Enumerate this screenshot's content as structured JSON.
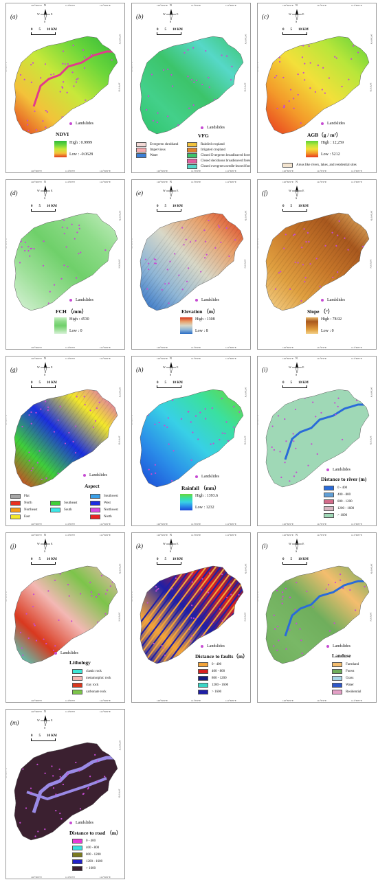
{
  "panels": [
    {
      "label": "(a)",
      "title": "NDVI",
      "high": "High : 0.9999",
      "low": "Low : -0.0628"
    },
    {
      "label": "(b)",
      "title": "VFG",
      "classes": [
        "Evergreen shrubland",
        "Impervious",
        "Water",
        "Rainfed cropland",
        "Irrigated cropland",
        "Closed Evergreen broadleaved forest",
        "Closed deciduous broadleaved forest",
        "Closed evergreen needle-leaved forest"
      ]
    },
    {
      "label": "(c)",
      "title": "AGB（g / m²）",
      "high": "High : 12,259",
      "low": "Low : 5212",
      "note": "Areas like rivers, lakes, and residential sites"
    },
    {
      "label": "(d)",
      "title": "FCH （mm）",
      "high": "High : 4530",
      "low": "Low : 0"
    },
    {
      "label": "(e)",
      "title": "Elevation （m）",
      "high": "High : 1308",
      "low": "Low : 8"
    },
    {
      "label": "(f)",
      "title": "Slope （°）",
      "high": "High : 78.92",
      "low": "Low : 0"
    },
    {
      "label": "(g)",
      "title": "Aspect",
      "classes": [
        "Flat",
        "North",
        "Northeast",
        "East",
        "Southeast",
        "South",
        "Southwest",
        "West",
        "Northwest",
        "North"
      ]
    },
    {
      "label": "(h)",
      "title": "Rainfall （mm）",
      "high": "High : 1393.6",
      "low": "Low : 1232"
    },
    {
      "label": "(i)",
      "title": "Distance to river (m)",
      "classes": [
        "0 - 400",
        "400 - 800",
        "800 - 1200",
        "1200 - 1600",
        "> 1600"
      ]
    },
    {
      "label": "(j)",
      "title": "Lithology",
      "classes": [
        "clastic rock",
        "metamorphic rock",
        "clay rock",
        "carbonate rock"
      ]
    },
    {
      "label": "(k)",
      "title": "Distance to faults（m）",
      "classes": [
        "0 - 400",
        "400 - 800",
        "800 - 1200",
        "1200 - 1600",
        "> 1600"
      ]
    },
    {
      "label": "(l)",
      "title": "Landuse",
      "classes": [
        "Farmland",
        "Forest",
        "Grass",
        "Water",
        "Residential"
      ]
    },
    {
      "label": "(m)",
      "title": "Distance to road （m）",
      "classes": [
        "0 - 400",
        "400 - 800",
        "800 - 1200",
        "1200 - 1600",
        "> 1600"
      ]
    }
  ],
  "common": {
    "landslides": "Landslides",
    "north": "N",
    "west": "W",
    "east": "E",
    "south": "S",
    "scale_0": "0",
    "scale_5": "5",
    "scale_10": "10 KM",
    "lon1": "110°30'0\"E",
    "lon2": "111°0'0\"E",
    "lon3": "111°30'0\"E",
    "lat1": "30°30'0\"N",
    "lat2": "30°0'0\"N"
  },
  "colors": {
    "landslide": "#c64bd3",
    "vfg": [
      "#f3d9d6",
      "#f4a9ad",
      "#3d7fd6",
      "#f2c33d",
      "#e0822c",
      "#3cc46a",
      "#e25fa0",
      "#56d8c8"
    ],
    "aspect": [
      "#a6a6a6",
      "#e83020",
      "#f59a1a",
      "#f3e82a",
      "#3fcf3a",
      "#3fe6e6",
      "#3aa0e8",
      "#1b2ee0",
      "#d64be0",
      "#e82323"
    ],
    "river": [
      "#2a6bd9",
      "#5f9ed6",
      "#d36b8a",
      "#d7b6c1",
      "#9fd8b6"
    ],
    "lithology": [
      "#3de6d6",
      "#f3b8b4",
      "#d9381e",
      "#7cc44a"
    ],
    "faults": [
      "#f2a33a",
      "#d81f1f",
      "#161c80",
      "#3ad6c6",
      "#1f1fa6"
    ],
    "landuse": [
      "#f4bd6e",
      "#6fae5c",
      "#a8d6e8",
      "#2f58c8",
      "#e4a0c6"
    ],
    "road": [
      "#e63ad6",
      "#3ae0e0",
      "#7a7a1f",
      "#2222c8",
      "#3b2030"
    ]
  }
}
